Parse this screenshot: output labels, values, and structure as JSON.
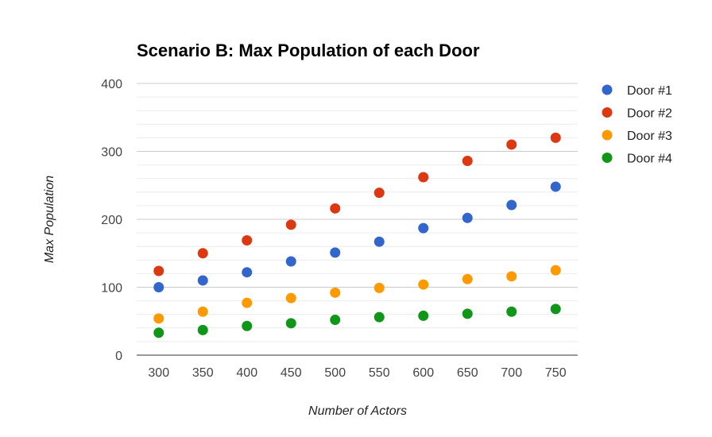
{
  "chart_data": {
    "type": "scatter",
    "title": "Scenario B: Max Population of each Door",
    "xlabel": "Number of Actors",
    "ylabel": "Max Population",
    "x": [
      300,
      350,
      400,
      450,
      500,
      550,
      600,
      650,
      700,
      750
    ],
    "xlim": [
      275,
      775
    ],
    "ylim": [
      0,
      400
    ],
    "y_ticks": [
      0,
      100,
      200,
      300,
      400
    ],
    "grid": true,
    "legend_position": "right",
    "series": [
      {
        "name": "Door #1",
        "color": "#3366cc",
        "values": [
          100,
          110,
          122,
          138,
          151,
          167,
          187,
          202,
          221,
          248
        ]
      },
      {
        "name": "Door #2",
        "color": "#dc3912",
        "values": [
          124,
          150,
          169,
          192,
          216,
          239,
          262,
          286,
          310,
          320
        ]
      },
      {
        "name": "Door #3",
        "color": "#ff9900",
        "values": [
          54,
          64,
          77,
          84,
          92,
          99,
          104,
          112,
          116,
          125
        ]
      },
      {
        "name": "Door #4",
        "color": "#109618",
        "values": [
          33,
          37,
          43,
          47,
          52,
          56,
          58,
          61,
          64,
          68
        ]
      }
    ]
  }
}
